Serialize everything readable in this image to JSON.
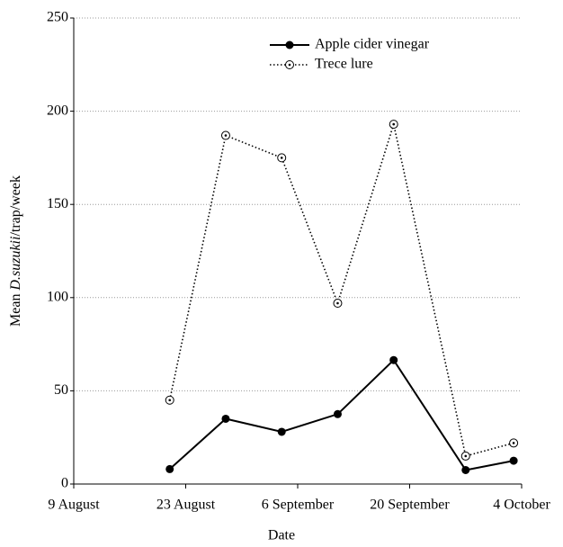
{
  "chart_data": {
    "type": "line",
    "xlabel": "Date",
    "ylabel": [
      "Mean",
      "D.suzukii",
      "/trap/week"
    ],
    "x": [
      "08-21",
      "08-28",
      "09-04",
      "09-11",
      "09-18",
      "09-27",
      "10-03"
    ],
    "series": [
      {
        "name": "Apple cider vinegar",
        "color": "#000000",
        "style": "solid",
        "marker": "filled",
        "values": [
          8,
          35,
          28,
          37.5,
          66.5,
          7.5,
          12.5
        ]
      },
      {
        "name": "Trece lure",
        "color": "#000000",
        "style": "dotted",
        "marker": "open-dot",
        "values": [
          45,
          187,
          175,
          97,
          193,
          15,
          22
        ]
      }
    ],
    "xlim": [
      "08-09",
      "10-04"
    ],
    "xticks": [
      {
        "value": "08-09",
        "label": "9 August"
      },
      {
        "value": "08-23",
        "label": "23 August"
      },
      {
        "value": "09-06",
        "label": "6 September"
      },
      {
        "value": "09-20",
        "label": "20 September"
      },
      {
        "value": "10-04",
        "label": "4 October"
      }
    ],
    "ylim": [
      0,
      250
    ],
    "yticks": [
      0,
      50,
      100,
      150,
      200,
      250
    ],
    "grid": true,
    "legend": "top"
  }
}
